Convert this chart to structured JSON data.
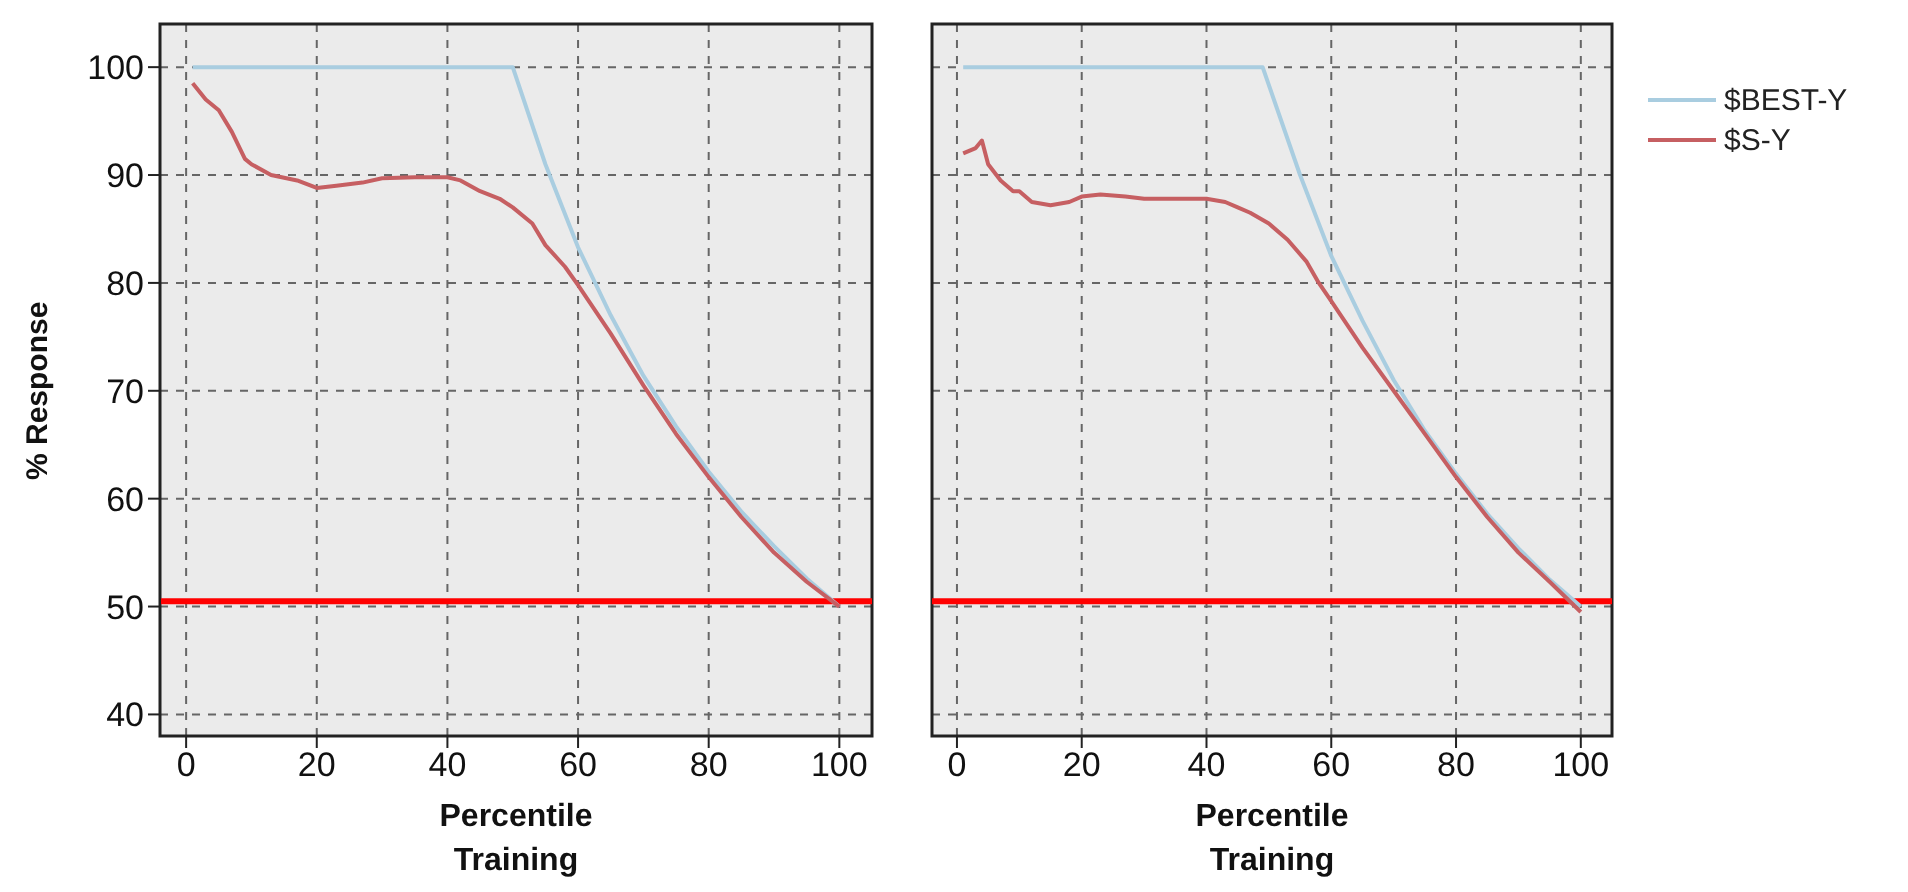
{
  "chart_data": [
    {
      "type": "line",
      "ylabel": "% Response",
      "xlabel": "Percentile",
      "annotations": [
        "Training"
      ],
      "xlim": [
        -4,
        105
      ],
      "xticks": [
        0,
        20,
        40,
        60,
        80,
        100
      ],
      "ylim": [
        38,
        104
      ],
      "yticks": [
        40,
        50,
        60,
        70,
        80,
        90,
        100
      ],
      "grid": true,
      "marker": "none",
      "line_style": "solid",
      "series": [
        {
          "color": "#a9cde0",
          "x": [
            1,
            50,
            55,
            60,
            65,
            70,
            75,
            80,
            85,
            90,
            95,
            100
          ],
          "values": [
            100,
            100,
            91,
            83.3,
            77,
            71.4,
            66.7,
            62.5,
            58.8,
            55.6,
            52.6,
            50
          ]
        },
        {
          "color": "#c65f62",
          "x": [
            1,
            3,
            5,
            7,
            9,
            10,
            13,
            17,
            20,
            23,
            27,
            30,
            35,
            40,
            42,
            45,
            48,
            50,
            53,
            55,
            58,
            60,
            65,
            70,
            75,
            80,
            85,
            90,
            95,
            100
          ],
          "values": [
            98.5,
            97,
            96,
            94,
            91.5,
            91,
            90,
            89.5,
            88.8,
            89,
            89.3,
            89.7,
            89.8,
            89.8,
            89.5,
            88.5,
            87.8,
            87,
            85.5,
            83.5,
            81.5,
            79.8,
            75.3,
            70.5,
            66,
            62,
            58.3,
            55,
            52.3,
            50
          ]
        }
      ],
      "ref_lines": [
        {
          "axis": "y",
          "value": 50.5,
          "color": "#ff0000"
        }
      ]
    },
    {
      "type": "line",
      "xlabel": "Percentile",
      "annotations": [
        "Training"
      ],
      "xlim": [
        -4,
        105
      ],
      "xticks": [
        0,
        20,
        40,
        60,
        80,
        100
      ],
      "ylim": [
        38,
        104
      ],
      "yticks": [
        40,
        50,
        60,
        70,
        80,
        90,
        100
      ],
      "tick_labels": "x",
      "grid": true,
      "legend": "right",
      "marker": "none",
      "line_style": "solid",
      "series": [
        {
          "name": "$BEST-Y",
          "color": "#a9cde0",
          "x": [
            1,
            49,
            55,
            60,
            65,
            70,
            75,
            80,
            85,
            90,
            95,
            100
          ],
          "values": [
            100,
            100,
            90,
            82.5,
            76.5,
            71,
            66.3,
            62.3,
            58.6,
            55.4,
            52.5,
            50
          ]
        },
        {
          "name": "$S-Y",
          "color": "#c65f62",
          "x": [
            1,
            3,
            4,
            5,
            7,
            9,
            10,
            12,
            15,
            18,
            20,
            23,
            27,
            30,
            35,
            40,
            43,
            45,
            47,
            50,
            53,
            56,
            58,
            60,
            65,
            70,
            75,
            80,
            85,
            90,
            95,
            100
          ],
          "values": [
            92,
            92.5,
            93.2,
            91,
            89.5,
            88.5,
            88.5,
            87.5,
            87.2,
            87.5,
            88,
            88.2,
            88,
            87.8,
            87.8,
            87.8,
            87.5,
            87,
            86.5,
            85.5,
            84,
            82,
            80,
            78.3,
            74,
            70,
            66,
            62,
            58.3,
            55,
            52.3,
            49.5
          ]
        }
      ],
      "ref_lines": [
        {
          "axis": "y",
          "value": 50.5,
          "color": "#ff0000"
        }
      ]
    }
  ]
}
